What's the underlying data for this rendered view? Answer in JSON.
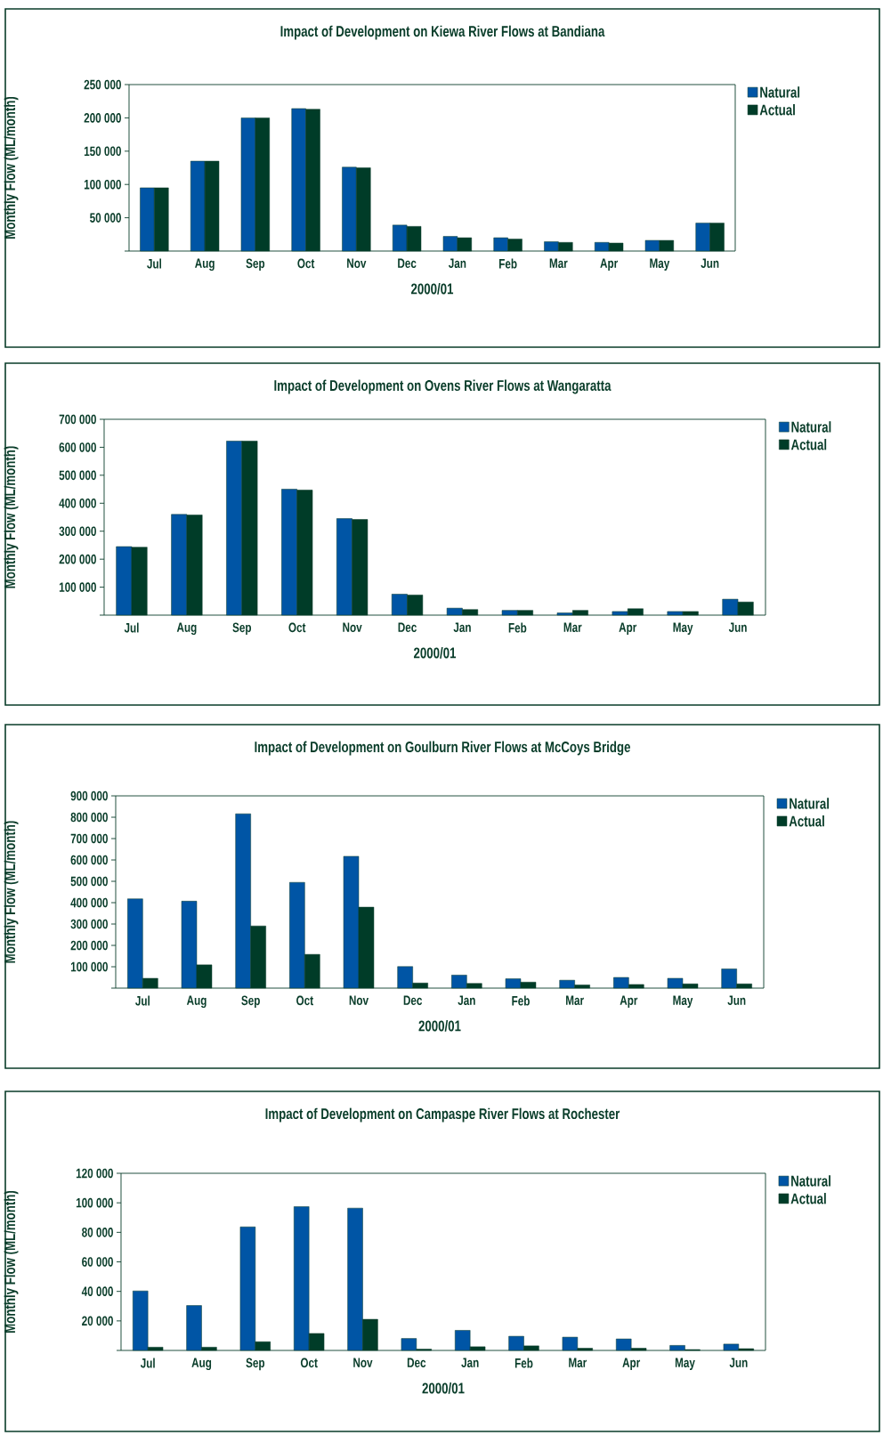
{
  "chart_data": [
    {
      "type": "bar",
      "title": "Impact of Development on Kiewa River Flows at Bandiana",
      "xlabel": "2000/01",
      "ylabel": "Monthly Flow (ML/month)",
      "categories": [
        "Jul",
        "Aug",
        "Sep",
        "Oct",
        "Nov",
        "Dec",
        "Jan",
        "Feb",
        "Mar",
        "Apr",
        "May",
        "Jun"
      ],
      "series": [
        {
          "name": "Natural",
          "color": "#0055a5",
          "values": [
            95000,
            135000,
            200000,
            214000,
            126000,
            39000,
            22000,
            20000,
            14000,
            13000,
            16000,
            42000
          ]
        },
        {
          "name": "Actual",
          "color": "#003c28",
          "values": [
            95000,
            135000,
            200000,
            213000,
            125000,
            37000,
            20000,
            18000,
            13000,
            12000,
            16000,
            42000
          ]
        }
      ],
      "ylim": [
        0,
        250000
      ],
      "yticks": [
        {
          "value": 0,
          "label": null
        },
        {
          "value": 50000,
          "label": "50 000"
        },
        {
          "value": 100000,
          "label": "100 000"
        },
        {
          "value": 150000,
          "label": "150 000"
        },
        {
          "value": 200000,
          "label": "200 000"
        },
        {
          "value": 250000,
          "label": "250 000"
        }
      ],
      "legend": "top right"
    },
    {
      "type": "bar",
      "title": "Impact of Development on Ovens River Flows at Wangaratta",
      "xlabel": "2000/01",
      "ylabel": "Monthly Flow (ML/month)",
      "categories": [
        "Jul",
        "Aug",
        "Sep",
        "Oct",
        "Nov",
        "Dec",
        "Jan",
        "Feb",
        "Mar",
        "Apr",
        "May",
        "Jun"
      ],
      "series": [
        {
          "name": "Natural",
          "color": "#0055a5",
          "values": [
            245000,
            360000,
            622000,
            450000,
            345000,
            75000,
            25000,
            17000,
            8000,
            13000,
            13000,
            57000
          ]
        },
        {
          "name": "Actual",
          "color": "#003c28",
          "values": [
            243000,
            358000,
            622000,
            447000,
            342000,
            72000,
            20000,
            17000,
            17000,
            23000,
            13000,
            47000
          ]
        }
      ],
      "ylim": [
        0,
        700000
      ],
      "yticks": [
        {
          "value": 0,
          "label": null
        },
        {
          "value": 100000,
          "label": "100 000"
        },
        {
          "value": 200000,
          "label": "200 000"
        },
        {
          "value": 300000,
          "label": "300 000"
        },
        {
          "value": 400000,
          "label": "400 000"
        },
        {
          "value": 500000,
          "label": "500 000"
        },
        {
          "value": 600000,
          "label": "600 000"
        },
        {
          "value": 700000,
          "label": "700 000"
        }
      ],
      "legend": "top right"
    },
    {
      "type": "bar",
      "title": "Impact of Development on Goulburn River Flows at McCoys Bridge",
      "xlabel": "2000/01",
      "ylabel": "Monthly Flow (ML/month)",
      "categories": [
        "Jul",
        "Aug",
        "Sep",
        "Oct",
        "Nov",
        "Dec",
        "Jan",
        "Feb",
        "Mar",
        "Apr",
        "May",
        "Jun"
      ],
      "series": [
        {
          "name": "Natural",
          "color": "#0055a5",
          "values": [
            418000,
            407000,
            816000,
            495000,
            617000,
            101000,
            61000,
            44000,
            37000,
            50000,
            46000,
            90000
          ]
        },
        {
          "name": "Actual",
          "color": "#003c28",
          "values": [
            46000,
            109000,
            291000,
            158000,
            379000,
            24000,
            22000,
            28000,
            15000,
            17000,
            20000,
            20000
          ]
        }
      ],
      "ylim": [
        0,
        900000
      ],
      "yticks": [
        {
          "value": 0,
          "label": null
        },
        {
          "value": 100000,
          "label": "100 000"
        },
        {
          "value": 200000,
          "label": "200 000"
        },
        {
          "value": 300000,
          "label": "300 000"
        },
        {
          "value": 400000,
          "label": "400 000"
        },
        {
          "value": 500000,
          "label": "500 000"
        },
        {
          "value": 600000,
          "label": "600 000"
        },
        {
          "value": 700000,
          "label": "700 000"
        },
        {
          "value": 800000,
          "label": "800 000"
        },
        {
          "value": 900000,
          "label": "900 000"
        }
      ],
      "legend": "top right"
    },
    {
      "type": "bar",
      "title": "Impact of Development on Campaspe River Flows at Rochester",
      "xlabel": "2000/01",
      "ylabel": "Monthly Flow (ML/month)",
      "categories": [
        "Jul",
        "Aug",
        "Sep",
        "Oct",
        "Nov",
        "Dec",
        "Jan",
        "Feb",
        "Mar",
        "Apr",
        "May",
        "Jun"
      ],
      "series": [
        {
          "name": "Natural",
          "color": "#0055a5",
          "values": [
            40300,
            30400,
            83700,
            97400,
            96400,
            8100,
            13600,
            9600,
            9000,
            7800,
            3400,
            4300
          ]
        },
        {
          "name": "Actual",
          "color": "#003c28",
          "values": [
            2200,
            2200,
            5900,
            11500,
            21100,
            900,
            2500,
            3100,
            1500,
            1500,
            600,
            1200
          ]
        }
      ],
      "ylim": [
        0,
        120000
      ],
      "yticks": [
        {
          "value": 0,
          "label": null
        },
        {
          "value": 20000,
          "label": "20 000"
        },
        {
          "value": 40000,
          "label": "40 000"
        },
        {
          "value": 60000,
          "label": "60 000"
        },
        {
          "value": 80000,
          "label": "80 000"
        },
        {
          "value": 100000,
          "label": "100 000"
        },
        {
          "value": 120000,
          "label": "120 000"
        }
      ],
      "legend": "top right"
    }
  ]
}
